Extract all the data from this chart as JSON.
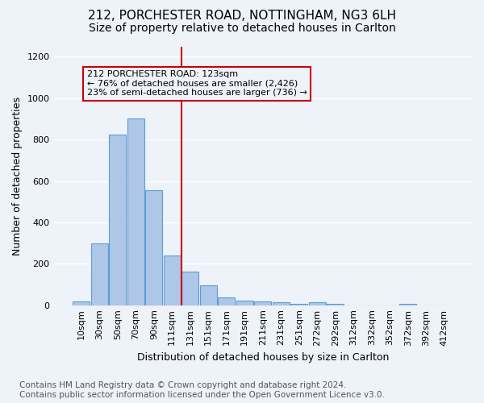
{
  "title1": "212, PORCHESTER ROAD, NOTTINGHAM, NG3 6LH",
  "title2": "Size of property relative to detached houses in Carlton",
  "xlabel": "Distribution of detached houses by size in Carlton",
  "ylabel": "Number of detached properties",
  "footnote": "Contains HM Land Registry data © Crown copyright and database right 2024.\nContains public sector information licensed under the Open Government Licence v3.0.",
  "bar_labels": [
    "10sqm",
    "30sqm",
    "50sqm",
    "70sqm",
    "90sqm",
    "111sqm",
    "131sqm",
    "151sqm",
    "171sqm",
    "191sqm",
    "211sqm",
    "231sqm",
    "251sqm",
    "272sqm",
    "292sqm",
    "312sqm",
    "332sqm",
    "352sqm",
    "372sqm",
    "392sqm",
    "412sqm"
  ],
  "bar_values": [
    20,
    300,
    825,
    900,
    555,
    240,
    163,
    98,
    37,
    22,
    20,
    13,
    8,
    13,
    8,
    0,
    0,
    0,
    8,
    0,
    0
  ],
  "bar_color": "#aec6e8",
  "bar_edge_color": "#5a9fd4",
  "vline_x": 5.5,
  "annotation_text": "212 PORCHESTER ROAD: 123sqm\n← 76% of detached houses are smaller (2,426)\n23% of semi-detached houses are larger (736) →",
  "annotation_box_color": "#cc0000",
  "ylim": [
    0,
    1250
  ],
  "yticks": [
    0,
    200,
    400,
    600,
    800,
    1000,
    1200
  ],
  "bg_color": "#eef2f9",
  "grid_color": "#ffffff",
  "title1_fontsize": 11,
  "title2_fontsize": 10,
  "ylabel_fontsize": 9,
  "xlabel_fontsize": 9,
  "tick_fontsize": 8,
  "annotation_fontsize": 8,
  "footnote_fontsize": 7.5
}
